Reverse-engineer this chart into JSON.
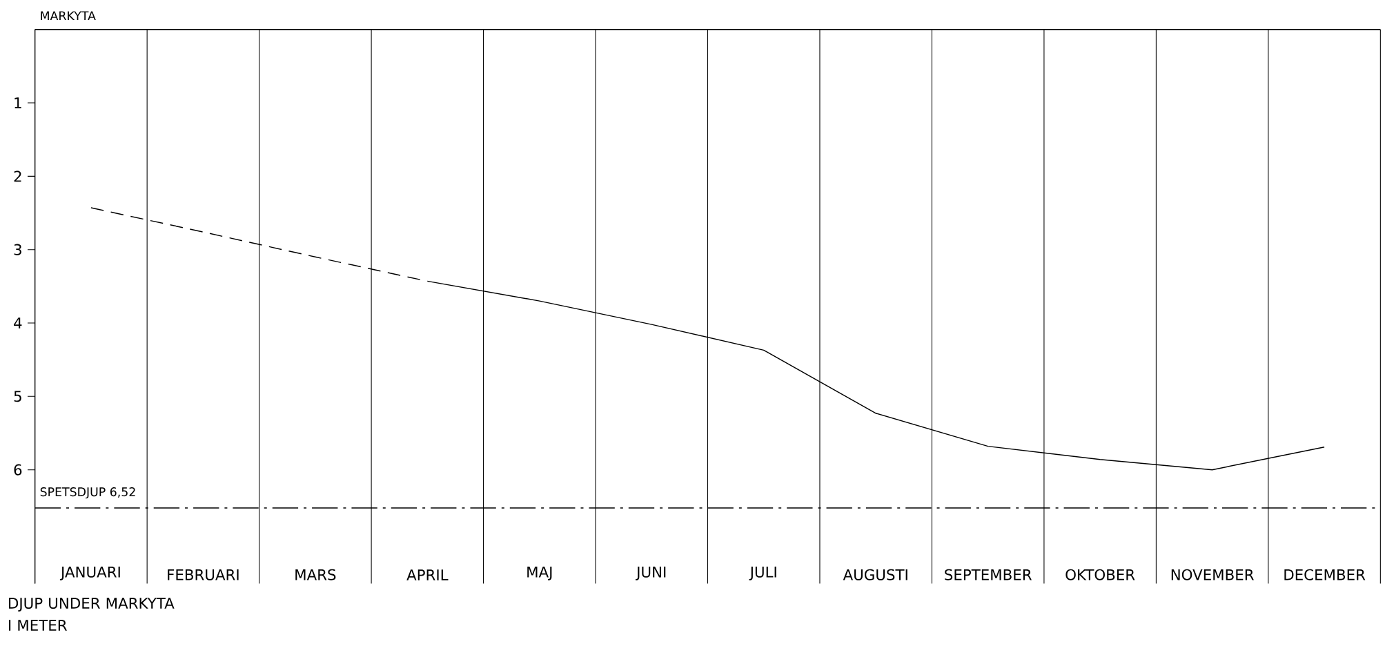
{
  "chart_data": {
    "type": "line",
    "ylabel": "DJUP UNDER MARKYTA I METER",
    "categories": [
      "JANUARI",
      "FEBRUARI",
      "MARS",
      "APRIL",
      "MAJ",
      "JUNI",
      "JULI",
      "AUGUSTI",
      "SEPTEMBER",
      "OKTOBER",
      "NOVEMBER",
      "DECEMBER"
    ],
    "series": [
      {
        "color": "#000000",
        "line_style": "dashed",
        "values": [
          2.43,
          2.76,
          3.1,
          3.43,
          null,
          null,
          null,
          null,
          null,
          null,
          null,
          null
        ]
      },
      {
        "color": "#000000",
        "line_style": "solid",
        "values": [
          null,
          null,
          null,
          3.43,
          3.7,
          4.02,
          4.37,
          5.23,
          5.68,
          5.86,
          6.0,
          5.69
        ]
      }
    ],
    "ylim": [
      7.55,
      0
    ],
    "yticks": [
      1,
      2,
      3,
      4,
      5,
      6
    ],
    "grid": "x",
    "ref_lines": [
      {
        "axis": "y",
        "value": 0,
        "label": "MARKYTA",
        "color": "#000000",
        "line_style": "solid"
      },
      {
        "axis": "y",
        "value": 6.52,
        "label": "SPETSDJUP 6,52",
        "color": "#000000",
        "line_style": "dashdot"
      }
    ]
  }
}
